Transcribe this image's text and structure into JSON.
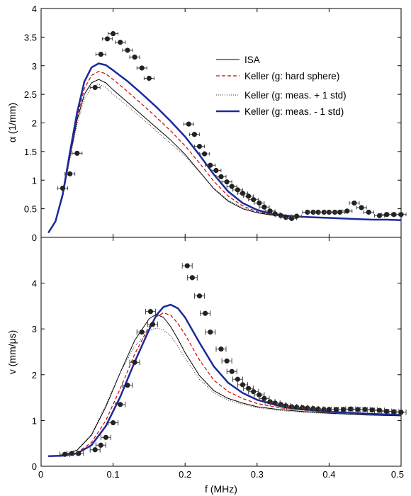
{
  "chart_data": [
    {
      "type": "line",
      "xlabel": "",
      "ylabel": "α (1/mm)",
      "xlim": [
        0,
        0.5
      ],
      "ylim": [
        0,
        4
      ],
      "xticks": [
        0,
        0.1,
        0.2,
        0.3,
        0.4,
        0.5
      ],
      "xtick_labels": [
        "0",
        "0.1",
        "0.2",
        "0.3",
        "0.4",
        "0.5"
      ],
      "yticks": [
        0,
        0.5,
        1,
        1.5,
        2,
        2.5,
        3,
        3.5,
        4
      ],
      "ytick_labels": [
        "0",
        "0.5",
        "1",
        "1.5",
        "2",
        "2.5",
        "3",
        "3.5",
        "4"
      ],
      "legend_position": "top-right",
      "series": [
        {
          "name": "ISA",
          "style": "solid-thin",
          "color": "#000000",
          "x": [
            0.01,
            0.02,
            0.03,
            0.04,
            0.05,
            0.06,
            0.07,
            0.08,
            0.09,
            0.1,
            0.12,
            0.14,
            0.16,
            0.18,
            0.2,
            0.22,
            0.24,
            0.26,
            0.28,
            0.3,
            0.32,
            0.34,
            0.36,
            0.38,
            0.4,
            0.42,
            0.44,
            0.46,
            0.48,
            0.5
          ],
          "y": [
            0.08,
            0.28,
            0.72,
            1.4,
            2.05,
            2.5,
            2.7,
            2.76,
            2.7,
            2.58,
            2.36,
            2.14,
            1.92,
            1.7,
            1.45,
            1.15,
            0.85,
            0.63,
            0.5,
            0.43,
            0.39,
            0.37,
            0.36,
            0.35,
            0.34,
            0.33,
            0.32,
            0.31,
            0.31,
            0.3
          ]
        },
        {
          "name": "Keller (g: hard sphere)",
          "style": "dashed",
          "color": "#d40000",
          "x": [
            0.01,
            0.02,
            0.03,
            0.04,
            0.05,
            0.06,
            0.07,
            0.08,
            0.09,
            0.1,
            0.12,
            0.14,
            0.16,
            0.18,
            0.2,
            0.22,
            0.24,
            0.26,
            0.28,
            0.3,
            0.32,
            0.34,
            0.36,
            0.38,
            0.4,
            0.42,
            0.44,
            0.46,
            0.48,
            0.5
          ],
          "y": [
            0.08,
            0.28,
            0.72,
            1.42,
            2.1,
            2.6,
            2.83,
            2.9,
            2.86,
            2.76,
            2.55,
            2.33,
            2.1,
            1.86,
            1.6,
            1.3,
            0.98,
            0.72,
            0.55,
            0.45,
            0.4,
            0.37,
            0.36,
            0.35,
            0.34,
            0.33,
            0.32,
            0.31,
            0.31,
            0.3
          ]
        },
        {
          "name": "Keller (g: meas. + 1 std)",
          "style": "dotted",
          "color": "#333333",
          "x": [
            0.01,
            0.02,
            0.03,
            0.04,
            0.05,
            0.06,
            0.07,
            0.08,
            0.09,
            0.1,
            0.12,
            0.14,
            0.16,
            0.18,
            0.2,
            0.22,
            0.24,
            0.26,
            0.28,
            0.3,
            0.32,
            0.34,
            0.36,
            0.38,
            0.4,
            0.42,
            0.44,
            0.46,
            0.48,
            0.5
          ],
          "y": [
            0.08,
            0.28,
            0.7,
            1.36,
            1.98,
            2.42,
            2.62,
            2.68,
            2.62,
            2.5,
            2.3,
            2.08,
            1.86,
            1.64,
            1.42,
            1.14,
            0.86,
            0.65,
            0.52,
            0.44,
            0.4,
            0.37,
            0.36,
            0.35,
            0.34,
            0.33,
            0.32,
            0.31,
            0.31,
            0.3
          ]
        },
        {
          "name": "Keller (g: meas. - 1 std)",
          "style": "solid-thick",
          "color": "#1a2a9c",
          "x": [
            0.01,
            0.02,
            0.03,
            0.04,
            0.05,
            0.06,
            0.07,
            0.08,
            0.09,
            0.1,
            0.12,
            0.14,
            0.16,
            0.18,
            0.2,
            0.22,
            0.24,
            0.26,
            0.28,
            0.3,
            0.32,
            0.34,
            0.36,
            0.38,
            0.4,
            0.42,
            0.44,
            0.46,
            0.48,
            0.5
          ],
          "y": [
            0.08,
            0.28,
            0.75,
            1.48,
            2.18,
            2.72,
            2.97,
            3.04,
            3.01,
            2.92,
            2.73,
            2.51,
            2.28,
            2.03,
            1.76,
            1.44,
            1.1,
            0.8,
            0.6,
            0.48,
            0.41,
            0.38,
            0.36,
            0.35,
            0.34,
            0.33,
            0.32,
            0.31,
            0.31,
            0.3
          ]
        },
        {
          "name": "",
          "type": "scatter-errorbar",
          "color": "#222222",
          "x": [
            0.03,
            0.04,
            0.05,
            0.075,
            0.083,
            0.092,
            0.1,
            0.11,
            0.12,
            0.13,
            0.14,
            0.15,
            0.205,
            0.213,
            0.22,
            0.227,
            0.235,
            0.243,
            0.25,
            0.258,
            0.265,
            0.273,
            0.28,
            0.288,
            0.295,
            0.303,
            0.31,
            0.318,
            0.325,
            0.333,
            0.34,
            0.348,
            0.355,
            0.37,
            0.378,
            0.385,
            0.393,
            0.4,
            0.408,
            0.415,
            0.425,
            0.435,
            0.445,
            0.455,
            0.47,
            0.48,
            0.49,
            0.5
          ],
          "y": [
            0.86,
            1.11,
            1.47,
            2.62,
            3.2,
            3.47,
            3.56,
            3.41,
            3.27,
            3.15,
            2.96,
            2.78,
            1.98,
            1.8,
            1.59,
            1.46,
            1.26,
            1.17,
            1.06,
            0.97,
            0.89,
            0.83,
            0.77,
            0.72,
            0.66,
            0.6,
            0.53,
            0.46,
            0.41,
            0.38,
            0.35,
            0.33,
            0.37,
            0.44,
            0.44,
            0.44,
            0.44,
            0.44,
            0.44,
            0.44,
            0.46,
            0.6,
            0.52,
            0.44,
            0.38,
            0.4,
            0.4,
            0.4
          ],
          "err": 0.03
        }
      ]
    },
    {
      "type": "line",
      "xlabel": "f (MHz)",
      "ylabel": "v (mm/μs)",
      "xlim": [
        0,
        0.5
      ],
      "ylim": [
        0,
        5
      ],
      "xticks": [
        0,
        0.1,
        0.2,
        0.3,
        0.4,
        0.5
      ],
      "xtick_labels": [
        "0",
        "0.1",
        "0.2",
        "0.3",
        "0.4",
        "0.5"
      ],
      "yticks": [
        0,
        1,
        2,
        3,
        4
      ],
      "ytick_labels": [
        "0",
        "1",
        "2",
        "3",
        "4"
      ],
      "series": [
        {
          "name": "ISA",
          "style": "solid-thin",
          "color": "#000000",
          "x": [
            0.01,
            0.03,
            0.05,
            0.07,
            0.09,
            0.11,
            0.13,
            0.15,
            0.16,
            0.17,
            0.18,
            0.19,
            0.2,
            0.22,
            0.24,
            0.26,
            0.28,
            0.3,
            0.33,
            0.36,
            0.4,
            0.45,
            0.5
          ],
          "y": [
            0.22,
            0.24,
            0.35,
            0.68,
            1.3,
            2.05,
            2.75,
            3.22,
            3.32,
            3.25,
            3.05,
            2.78,
            2.48,
            1.98,
            1.65,
            1.48,
            1.38,
            1.3,
            1.24,
            1.2,
            1.16,
            1.12,
            1.1
          ]
        },
        {
          "name": "Keller (g: hard sphere)",
          "style": "dashed",
          "color": "#d40000",
          "x": [
            0.01,
            0.03,
            0.05,
            0.07,
            0.09,
            0.11,
            0.13,
            0.15,
            0.16,
            0.17,
            0.18,
            0.19,
            0.2,
            0.22,
            0.24,
            0.26,
            0.28,
            0.3,
            0.33,
            0.36,
            0.4,
            0.45,
            0.5
          ],
          "y": [
            0.22,
            0.23,
            0.3,
            0.52,
            1.0,
            1.7,
            2.45,
            3.05,
            3.27,
            3.35,
            3.3,
            3.12,
            2.88,
            2.32,
            1.88,
            1.63,
            1.48,
            1.37,
            1.28,
            1.23,
            1.18,
            1.14,
            1.12
          ]
        },
        {
          "name": "Keller (g: meas. + 1 std)",
          "style": "dotted",
          "color": "#333333",
          "x": [
            0.01,
            0.03,
            0.05,
            0.07,
            0.09,
            0.11,
            0.13,
            0.15,
            0.16,
            0.17,
            0.18,
            0.19,
            0.2,
            0.22,
            0.24,
            0.26,
            0.28,
            0.3,
            0.33,
            0.36,
            0.4,
            0.45,
            0.5
          ],
          "y": [
            0.22,
            0.24,
            0.36,
            0.7,
            1.34,
            2.05,
            2.62,
            2.96,
            3.02,
            2.98,
            2.85,
            2.62,
            2.36,
            1.9,
            1.6,
            1.44,
            1.35,
            1.28,
            1.22,
            1.18,
            1.15,
            1.12,
            1.1
          ]
        },
        {
          "name": "Keller (g: meas. - 1 std)",
          "style": "solid-thick",
          "color": "#1a2a9c",
          "x": [
            0.01,
            0.03,
            0.05,
            0.07,
            0.09,
            0.11,
            0.13,
            0.15,
            0.16,
            0.17,
            0.18,
            0.19,
            0.2,
            0.22,
            0.24,
            0.26,
            0.28,
            0.3,
            0.33,
            0.36,
            0.4,
            0.45,
            0.5
          ],
          "y": [
            0.22,
            0.23,
            0.28,
            0.46,
            0.88,
            1.52,
            2.28,
            2.98,
            3.3,
            3.48,
            3.53,
            3.45,
            3.25,
            2.7,
            2.18,
            1.82,
            1.6,
            1.45,
            1.32,
            1.25,
            1.19,
            1.15,
            1.12
          ]
        },
        {
          "name": "",
          "type": "scatter-errorbar",
          "color": "#222222",
          "x": [
            0.033,
            0.043,
            0.052,
            0.075,
            0.083,
            0.09,
            0.1,
            0.11,
            0.12,
            0.13,
            0.14,
            0.152,
            0.155,
            0.203,
            0.21,
            0.22,
            0.228,
            0.235,
            0.25,
            0.258,
            0.265,
            0.273,
            0.28,
            0.288,
            0.295,
            0.303,
            0.31,
            0.318,
            0.325,
            0.333,
            0.34,
            0.348,
            0.355,
            0.363,
            0.37,
            0.378,
            0.385,
            0.393,
            0.4,
            0.41,
            0.42,
            0.43,
            0.44,
            0.45,
            0.46,
            0.47,
            0.48,
            0.49,
            0.5
          ],
          "y": [
            0.26,
            0.28,
            0.28,
            0.36,
            0.46,
            0.63,
            0.95,
            1.35,
            1.77,
            2.27,
            2.93,
            3.38,
            3.1,
            4.38,
            4.12,
            3.72,
            3.34,
            2.93,
            2.56,
            2.3,
            2.07,
            1.9,
            1.78,
            1.7,
            1.63,
            1.56,
            1.48,
            1.41,
            1.38,
            1.35,
            1.32,
            1.3,
            1.29,
            1.28,
            1.27,
            1.26,
            1.25,
            1.24,
            1.24,
            1.24,
            1.24,
            1.25,
            1.24,
            1.24,
            1.23,
            1.22,
            1.2,
            1.19,
            1.18
          ],
          "err": 0.06
        }
      ]
    }
  ]
}
